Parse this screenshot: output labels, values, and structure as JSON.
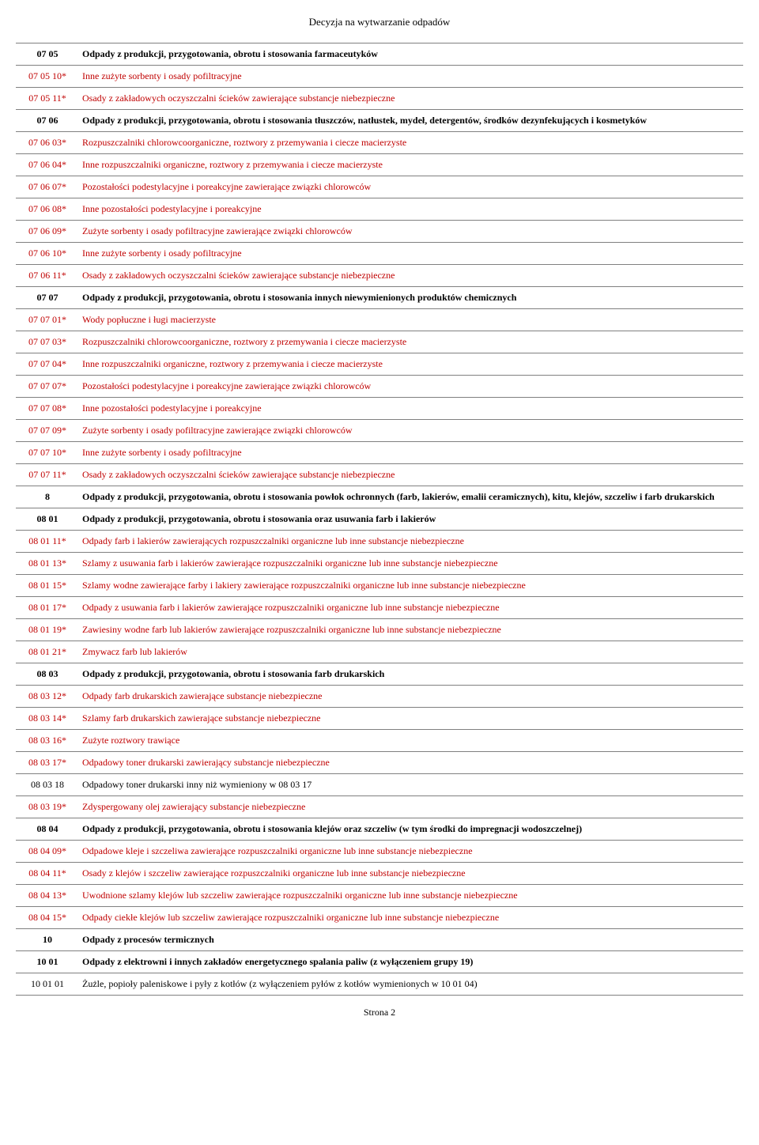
{
  "doc_title": "Decyzja na wytwarzanie odpadów",
  "footer": "Strona 2",
  "rows": [
    {
      "code": "07 05",
      "desc": "Odpady z produkcji, przygotowania, obrotu i stosowania farmaceutyków",
      "bold": true,
      "red": false
    },
    {
      "code": "07 05 10*",
      "desc": "Inne zużyte sorbenty i osady pofiltracyjne",
      "bold": false,
      "red": true
    },
    {
      "code": "07 05 11*",
      "desc": "Osady z zakładowych oczyszczalni ścieków zawierające substancje niebezpieczne",
      "bold": false,
      "red": true
    },
    {
      "code": "07 06",
      "desc": "Odpady z produkcji, przygotowania, obrotu i stosowania tłuszczów, natłustek, mydeł, detergentów, środków dezynfekujących i kosmetyków",
      "bold": true,
      "red": false
    },
    {
      "code": "07 06 03*",
      "desc": "Rozpuszczalniki chlorowcoorganiczne, roztwory z przemywania i ciecze macierzyste",
      "bold": false,
      "red": true
    },
    {
      "code": "07 06 04*",
      "desc": "Inne rozpuszczalniki organiczne, roztwory z przemywania i ciecze macierzyste",
      "bold": false,
      "red": true
    },
    {
      "code": "07 06 07*",
      "desc": "Pozostałości podestylacyjne i poreakcyjne zawierające związki chlorowców",
      "bold": false,
      "red": true
    },
    {
      "code": "07 06 08*",
      "desc": "Inne pozostałości podestylacyjne i poreakcyjne",
      "bold": false,
      "red": true
    },
    {
      "code": "07 06 09*",
      "desc": "Zużyte sorbenty i osady pofiltracyjne zawierające związki chlorowców",
      "bold": false,
      "red": true
    },
    {
      "code": "07 06 10*",
      "desc": "Inne zużyte sorbenty i osady pofiltracyjne",
      "bold": false,
      "red": true
    },
    {
      "code": "07 06 11*",
      "desc": "Osady z zakładowych oczyszczalni ścieków zawierające substancje niebezpieczne",
      "bold": false,
      "red": true
    },
    {
      "code": "07 07",
      "desc": "Odpady z produkcji, przygotowania, obrotu i stosowania innych niewymienionych produktów chemicznych",
      "bold": true,
      "red": false
    },
    {
      "code": "07 07 01*",
      "desc": "Wody popłuczne i ługi macierzyste",
      "bold": false,
      "red": true
    },
    {
      "code": "07 07 03*",
      "desc": "Rozpuszczalniki chlorowcoorganiczne, roztwory z przemywania i ciecze macierzyste",
      "bold": false,
      "red": true
    },
    {
      "code": "07 07 04*",
      "desc": "Inne rozpuszczalniki organiczne, roztwory z przemywania i ciecze macierzyste",
      "bold": false,
      "red": true
    },
    {
      "code": "07 07 07*",
      "desc": "Pozostałości podestylacyjne i poreakcyjne zawierające związki chlorowców",
      "bold": false,
      "red": true
    },
    {
      "code": "07 07 08*",
      "desc": "Inne pozostałości podestylacyjne i poreakcyjne",
      "bold": false,
      "red": true
    },
    {
      "code": "07 07 09*",
      "desc": "Zużyte sorbenty i osady pofiltracyjne zawierające związki chlorowców",
      "bold": false,
      "red": true
    },
    {
      "code": "07 07 10*",
      "desc": "Inne zużyte sorbenty i osady pofiltracyjne",
      "bold": false,
      "red": true
    },
    {
      "code": "07 07 11*",
      "desc": "Osady z zakładowych oczyszczalni ścieków zawierające substancje niebezpieczne",
      "bold": false,
      "red": true
    },
    {
      "code": "8",
      "desc": "Odpady z produkcji, przygotowania, obrotu i stosowania powłok ochronnych (farb, lakierów, emalii ceramicznych), kitu, klejów, szczeliw i farb drukarskich",
      "bold": true,
      "red": false
    },
    {
      "code": "08 01",
      "desc": "Odpady z produkcji, przygotowania, obrotu i stosowania oraz usuwania farb i lakierów",
      "bold": true,
      "red": false
    },
    {
      "code": "08 01 11*",
      "desc": "Odpady farb i lakierów zawierających rozpuszczalniki organiczne lub inne substancje niebezpieczne",
      "bold": false,
      "red": true
    },
    {
      "code": "08 01 13*",
      "desc": "Szlamy z usuwania farb i lakierów zawierające rozpuszczalniki organiczne lub inne substancje niebezpieczne",
      "bold": false,
      "red": true
    },
    {
      "code": "08 01 15*",
      "desc": "Szlamy wodne zawierające farby i lakiery zawierające rozpuszczalniki organiczne lub inne substancje niebezpieczne",
      "bold": false,
      "red": true
    },
    {
      "code": "08 01 17*",
      "desc": "Odpady z usuwania farb i lakierów zawierające rozpuszczalniki organiczne lub inne substancje niebezpieczne",
      "bold": false,
      "red": true
    },
    {
      "code": "08 01 19*",
      "desc": "Zawiesiny wodne farb lub lakierów zawierające rozpuszczalniki organiczne lub inne substancje niebezpieczne",
      "bold": false,
      "red": true
    },
    {
      "code": "08 01 21*",
      "desc": "Zmywacz farb lub lakierów",
      "bold": false,
      "red": true
    },
    {
      "code": "08 03",
      "desc": "Odpady z produkcji, przygotowania, obrotu i stosowania farb drukarskich",
      "bold": true,
      "red": false
    },
    {
      "code": "08 03 12*",
      "desc": "Odpady farb drukarskich zawierające substancje niebezpieczne",
      "bold": false,
      "red": true
    },
    {
      "code": "08 03 14*",
      "desc": "Szlamy farb drukarskich zawierające substancje niebezpieczne",
      "bold": false,
      "red": true
    },
    {
      "code": "08 03 16*",
      "desc": "Zużyte roztwory trawiące",
      "bold": false,
      "red": true
    },
    {
      "code": "08 03 17*",
      "desc": "Odpadowy toner drukarski zawierający substancje niebezpieczne",
      "bold": false,
      "red": true
    },
    {
      "code": "08 03 18",
      "desc": "Odpadowy toner drukarski inny niż wymieniony w 08 03 17",
      "bold": false,
      "red": false
    },
    {
      "code": "08 03 19*",
      "desc": "Zdyspergowany olej zawierający substancje niebezpieczne",
      "bold": false,
      "red": true
    },
    {
      "code": "08 04",
      "desc": "Odpady z produkcji, przygotowania, obrotu i stosowania klejów oraz szczeliw (w tym środki do impregnacji wodoszczelnej)",
      "bold": true,
      "red": false
    },
    {
      "code": "08 04 09*",
      "desc": "Odpadowe kleje i szczeliwa zawierające rozpuszczalniki organiczne lub inne substancje niebezpieczne",
      "bold": false,
      "red": true
    },
    {
      "code": "08 04 11*",
      "desc": "Osady z klejów i szczeliw zawierające rozpuszczalniki organiczne lub inne substancje niebezpieczne",
      "bold": false,
      "red": true
    },
    {
      "code": "08 04 13*",
      "desc": "Uwodnione szlamy klejów lub szczeliw zawierające rozpuszczalniki organiczne lub inne substancje niebezpieczne",
      "bold": false,
      "red": true
    },
    {
      "code": "08 04 15*",
      "desc": "Odpady ciekłe klejów lub szczeliw zawierające rozpuszczalniki organiczne lub inne substancje niebezpieczne",
      "bold": false,
      "red": true
    },
    {
      "code": "10",
      "desc": "Odpady z procesów termicznych",
      "bold": true,
      "red": false
    },
    {
      "code": "10 01",
      "desc": "Odpady z elektrowni i innych zakładów energetycznego spalania paliw (z wyłączeniem grupy 19)",
      "bold": true,
      "red": false
    },
    {
      "code": "10 01 01",
      "desc": "Żużle, popioły paleniskowe i pyły z kotłów (z wyłączeniem pyłów z kotłów wymienionych w 10 01 04)",
      "bold": false,
      "red": false
    }
  ]
}
